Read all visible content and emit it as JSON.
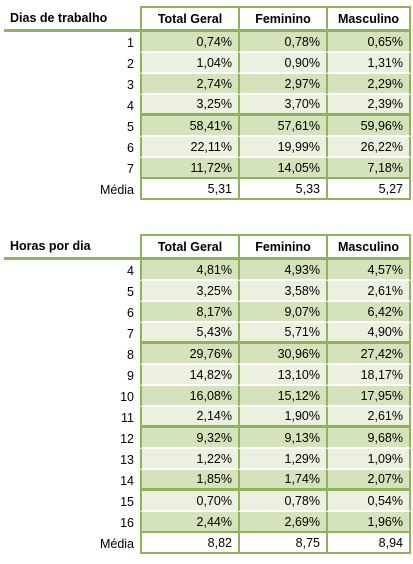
{
  "table1": {
    "headers": [
      "Dias de trabalho",
      "Total Geral",
      "Feminino",
      "Masculino"
    ],
    "rows": [
      {
        "label": "1",
        "total": "0,74%",
        "fem": "0,78%",
        "masc": "0,65%"
      },
      {
        "label": "2",
        "total": "1,04%",
        "fem": "0,90%",
        "masc": "1,31%"
      },
      {
        "label": "3",
        "total": "2,74%",
        "fem": "2,97%",
        "masc": "2,29%"
      },
      {
        "label": "4",
        "total": "3,25%",
        "fem": "3,70%",
        "masc": "2,39%"
      },
      {
        "label": "5",
        "total": "58,41%",
        "fem": "57,61%",
        "masc": "59,96%"
      },
      {
        "label": "6",
        "total": "22,11%",
        "fem": "19,99%",
        "masc": "26,22%"
      },
      {
        "label": "7",
        "total": "11,72%",
        "fem": "14,05%",
        "masc": "7,18%"
      },
      {
        "label": "Média",
        "total": "5,31",
        "fem": "5,33",
        "masc": "5,27"
      }
    ]
  },
  "table2": {
    "headers": [
      "Horas por dia",
      "Total Geral",
      "Feminino",
      "Masculino"
    ],
    "rows": [
      {
        "label": "4",
        "total": "4,81%",
        "fem": "4,93%",
        "masc": "4,57%"
      },
      {
        "label": "5",
        "total": "3,25%",
        "fem": "3,58%",
        "masc": "2,61%"
      },
      {
        "label": "6",
        "total": "8,17%",
        "fem": "9,07%",
        "masc": "6,42%"
      },
      {
        "label": "7",
        "total": "5,43%",
        "fem": "5,71%",
        "masc": "4,90%"
      },
      {
        "label": "8",
        "total": "29,76%",
        "fem": "30,96%",
        "masc": "27,42%"
      },
      {
        "label": "9",
        "total": "14,82%",
        "fem": "13,10%",
        "masc": "18,17%"
      },
      {
        "label": "10",
        "total": "16,08%",
        "fem": "15,12%",
        "masc": "17,95%"
      },
      {
        "label": "11",
        "total": "2,14%",
        "fem": "1,90%",
        "masc": "2,61%"
      },
      {
        "label": "12",
        "total": "9,32%",
        "fem": "9,13%",
        "masc": "9,68%"
      },
      {
        "label": "13",
        "total": "1,22%",
        "fem": "1,29%",
        "masc": "1,09%"
      },
      {
        "label": "14",
        "total": "1,85%",
        "fem": "1,74%",
        "masc": "2,07%"
      },
      {
        "label": "15",
        "total": "0,70%",
        "fem": "0,78%",
        "masc": "0,54%"
      },
      {
        "label": "16",
        "total": "2,44%",
        "fem": "2,69%",
        "masc": "1,96%"
      },
      {
        "label": "Média",
        "total": "8,82",
        "fem": "8,75",
        "masc": "8,94"
      }
    ]
  },
  "colors": {
    "border": "#8eb35a",
    "row_dark": "#d5e3bc",
    "row_light": "#ebf1de"
  }
}
